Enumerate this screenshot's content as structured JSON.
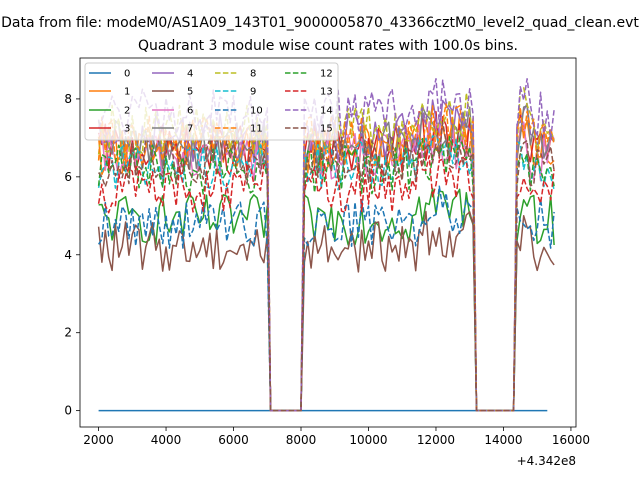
{
  "suptitle": "Data from file: modeM0/AS1A09_143T01_9000005870_43366cztM0_level2_quad_clean.evt",
  "chart_data": {
    "type": "line",
    "title": "Quadrant 3 module wise count rates with 100.0s bins.",
    "xlabel": "",
    "ylabel": "",
    "x_offset_label": "+4.342e8",
    "xlim": [
      1450,
      16150
    ],
    "ylim": [
      -0.42,
      9.05
    ],
    "xticks": [
      2000,
      4000,
      6000,
      8000,
      10000,
      12000,
      14000,
      16000
    ],
    "xtick_labels": [
      "2000",
      "4000",
      "6000",
      "8000",
      "10000",
      "12000",
      "14000",
      "16000"
    ],
    "yticks": [
      0,
      2,
      4,
      6,
      8
    ],
    "ytick_labels": [
      "0",
      "2",
      "4",
      "6",
      "8"
    ],
    "grid": false,
    "legend_position": "top-left",
    "legend_columns": 4,
    "x_start": 2000,
    "x_step": 100,
    "gti_note": "flat at 0 between 7000-8100 and 13100-14400; segments 2000-7000, 8100-13100, 14400-15500",
    "series": [
      {
        "name": "0",
        "color": "#1f77b4",
        "dash": "solid",
        "level": 0.0,
        "values": [
          0,
          0,
          0,
          0,
          0,
          0,
          0,
          0,
          0,
          0,
          0,
          0,
          0,
          0,
          0,
          0,
          0,
          0,
          0,
          0,
          0,
          0,
          0,
          0,
          0,
          0,
          0,
          0,
          0,
          0,
          0,
          0,
          0,
          0,
          0,
          0,
          0,
          0,
          0,
          0,
          0,
          0,
          0,
          0,
          0,
          0,
          0,
          0,
          0,
          0,
          0,
          0,
          0,
          0,
          0,
          0,
          0,
          0,
          0,
          0,
          0,
          0,
          0,
          0,
          0,
          0,
          0,
          0,
          0,
          0,
          0,
          0,
          0,
          0,
          0,
          0,
          0,
          0,
          0,
          0,
          0,
          0,
          0,
          0,
          0,
          0,
          0,
          0,
          0,
          0,
          0,
          0,
          0,
          0,
          0,
          0,
          0,
          0,
          0,
          0,
          0,
          0,
          0,
          0,
          0,
          0,
          0,
          0,
          0,
          0,
          0,
          0,
          0,
          0,
          0,
          0,
          0,
          0,
          0,
          0,
          0,
          0,
          0,
          0,
          0,
          0,
          0,
          0,
          0,
          0,
          0,
          0,
          0,
          0
        ]
      },
      {
        "name": "1",
        "color": "#ff7f0e",
        "dash": "solid",
        "level": 6.7
      },
      {
        "name": "2",
        "color": "#2ca02c",
        "dash": "solid",
        "level": 4.9
      },
      {
        "name": "3",
        "color": "#d62728",
        "dash": "solid",
        "level": 6.7
      },
      {
        "name": "4",
        "color": "#9467bd",
        "dash": "solid",
        "level": 7.0
      },
      {
        "name": "5",
        "color": "#8c564b",
        "dash": "solid",
        "level": 4.2
      },
      {
        "name": "6",
        "color": "#e377c2",
        "dash": "solid",
        "level": 6.5
      },
      {
        "name": "7",
        "color": "#7f7f7f",
        "dash": "solid",
        "level": 6.8
      },
      {
        "name": "8",
        "color": "#bcbd22",
        "dash": "dashed",
        "level": 7.2
      },
      {
        "name": "9",
        "color": "#17becf",
        "dash": "dashed",
        "level": 6.3
      },
      {
        "name": "10",
        "color": "#1f77b4",
        "dash": "dashed",
        "level": 4.8
      },
      {
        "name": "11",
        "color": "#ff7f0e",
        "dash": "dashed",
        "level": 6.9
      },
      {
        "name": "12",
        "color": "#2ca02c",
        "dash": "dashed",
        "level": 6.2
      },
      {
        "name": "13",
        "color": "#d62728",
        "dash": "dashed",
        "level": 5.7
      },
      {
        "name": "14",
        "color": "#9467bd",
        "dash": "dashed",
        "level": 7.6
      },
      {
        "name": "15",
        "color": "#8c564b",
        "dash": "dashed",
        "level": 6.4
      }
    ]
  }
}
